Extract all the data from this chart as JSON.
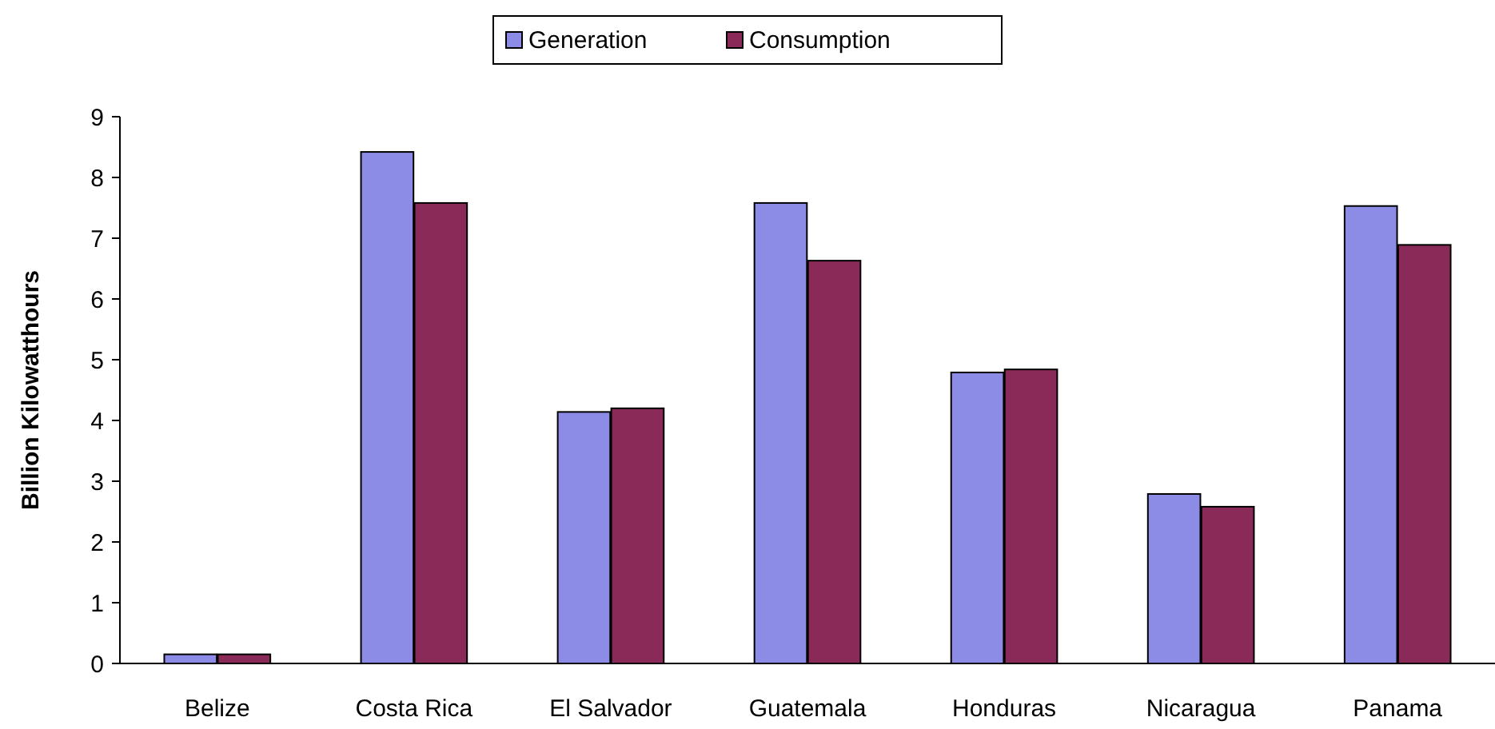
{
  "chart_data": {
    "type": "bar",
    "ylabel": "Billion Kilowatthours",
    "categories": [
      "Belize",
      "Costa Rica",
      "El Salvador",
      "Guatemala",
      "Honduras",
      "Nicaragua",
      "Panama"
    ],
    "series": [
      {
        "name": "Generation",
        "color": "#8c8ce6",
        "values": [
          0.15,
          8.42,
          4.14,
          7.58,
          4.79,
          2.79,
          7.53
        ]
      },
      {
        "name": "Consumption",
        "color": "#8a2a58",
        "values": [
          0.15,
          7.58,
          4.2,
          6.63,
          4.84,
          2.58,
          6.89
        ]
      }
    ],
    "ylim": [
      0,
      9
    ],
    "yticks": [
      0,
      1,
      2,
      3,
      4,
      5,
      6,
      7,
      8,
      9
    ],
    "grid": false,
    "legend": "top"
  }
}
